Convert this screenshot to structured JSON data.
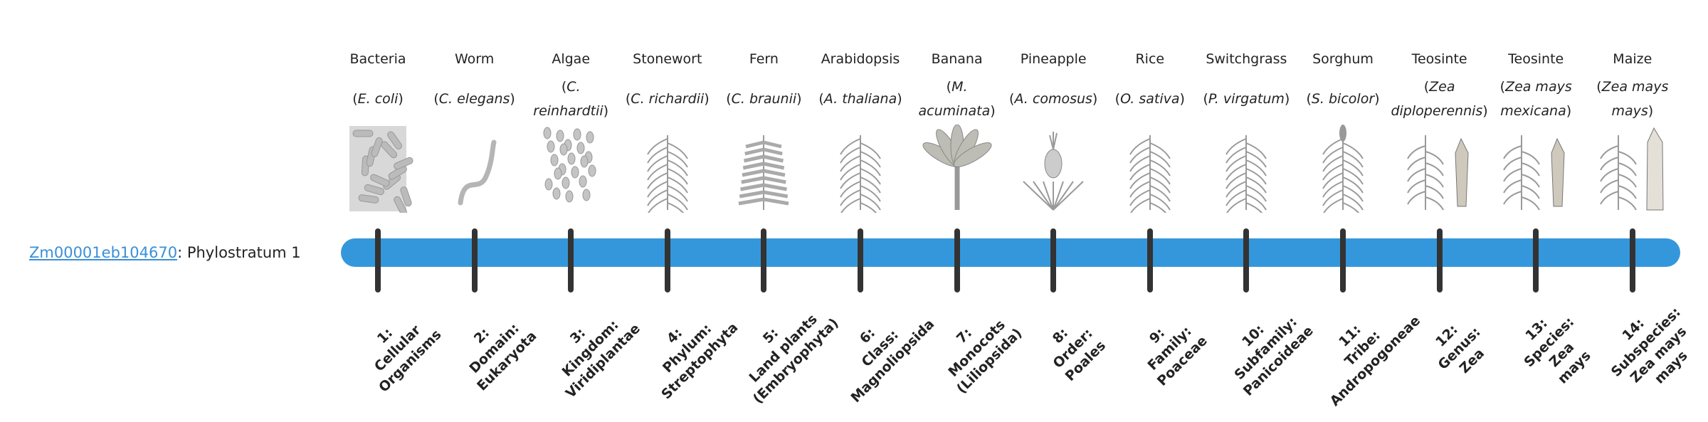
{
  "gene": {
    "id": "Zm00001eb104670",
    "separator": ": ",
    "stratum_text": "Phylostratum 1"
  },
  "colors": {
    "bar": "#3597db",
    "tick": "#333333",
    "link": "#3a8fd8",
    "illustration": "#9a9a9a"
  },
  "strata": [
    {
      "common": "Bacteria",
      "latin": "E. coli",
      "icon": "bacteria-illustration",
      "label_lines": [
        "1:",
        "Cellular",
        "Organisms"
      ]
    },
    {
      "common": "Worm",
      "latin": "C. elegans",
      "icon": "worm-illustration",
      "label_lines": [
        "2:",
        "Domain:",
        "Eukaryota"
      ]
    },
    {
      "common": "Algae",
      "latin": "C. reinhardtii",
      "icon": "algae-illustration",
      "label_lines": [
        "3:",
        "Kingdom:",
        "Viridiplantae"
      ]
    },
    {
      "common": "Stonewort",
      "latin": "C. richardii",
      "icon": "stonewort-illustration",
      "label_lines": [
        "4:",
        "Phylum:",
        "Streptophyta"
      ]
    },
    {
      "common": "Fern",
      "latin": "C. braunii",
      "icon": "fern-illustration",
      "label_lines": [
        "5:",
        "Land plants",
        "(Embryophyta)"
      ]
    },
    {
      "common": "Arabidopsis",
      "latin": "A. thaliana",
      "icon": "arabidopsis-illustration",
      "label_lines": [
        "6:",
        "Class:",
        "Magnoliopsida"
      ]
    },
    {
      "common": "Banana",
      "latin": "M. acuminata",
      "icon": "banana-illustration",
      "label_lines": [
        "7:",
        "Monocots",
        "(Liliopsida)"
      ]
    },
    {
      "common": "Pineapple",
      "latin": "A. comosus",
      "icon": "pineapple-illustration",
      "label_lines": [
        "8:",
        "Order:",
        "Poales"
      ]
    },
    {
      "common": "Rice",
      "latin": "O. sativa",
      "icon": "rice-illustration",
      "label_lines": [
        "9:",
        "Family:",
        "Poaceae"
      ]
    },
    {
      "common": "Switchgrass",
      "latin": "P. virgatum",
      "icon": "switchgrass-illustration",
      "label_lines": [
        "10:",
        "Subfamily:",
        "Panicoideae"
      ]
    },
    {
      "common": "Sorghum",
      "latin": "S. bicolor",
      "icon": "sorghum-illustration",
      "label_lines": [
        "11:",
        "Tribe:",
        "Andropogoneae"
      ]
    },
    {
      "common": "Teosinte",
      "latin": "Zea diploperennis",
      "icon": "teosinte-illustration",
      "label_lines": [
        "12:",
        "Genus:",
        "Zea"
      ]
    },
    {
      "common": "Teosinte",
      "latin": "Zea mays mexicana",
      "icon": "teosinte-illustration",
      "label_lines": [
        "13:",
        "Species:",
        "Zea",
        "mays"
      ]
    },
    {
      "common": "Maize",
      "latin": "Zea mays mays",
      "icon": "maize-illustration",
      "label_lines": [
        "14:",
        "Subspecies:",
        "Zea mays",
        "mays"
      ]
    }
  ]
}
